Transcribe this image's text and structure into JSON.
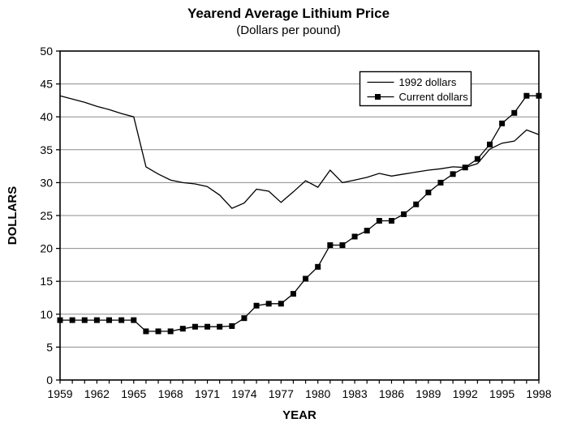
{
  "colors": {
    "background": "#ffffff",
    "foreground": "#000000",
    "gridline": "#8c8c8c",
    "series": "#000000",
    "legend_fill": "#ffffff"
  },
  "chart_data": {
    "type": "line",
    "title": "Yearend Average Lithium Price",
    "subtitle": "(Dollars per pound)",
    "xlabel": "YEAR",
    "ylabel": "DOLLARS",
    "xlim": [
      1959,
      1998
    ],
    "ylim": [
      0,
      50
    ],
    "y_ticks": [
      0,
      5,
      10,
      15,
      20,
      25,
      30,
      35,
      40,
      45,
      50
    ],
    "x_tick_labels": [
      "1959",
      "1962",
      "1965",
      "1968",
      "1971",
      "1974",
      "1977",
      "1980",
      "1983",
      "1986",
      "1989",
      "1992",
      "1995",
      "1998"
    ],
    "grid": {
      "horizontal": true,
      "vertical": false
    },
    "frame": true,
    "legend": {
      "position": "top-right-inside"
    },
    "x": [
      1959,
      1960,
      1961,
      1962,
      1963,
      1964,
      1965,
      1966,
      1967,
      1968,
      1969,
      1970,
      1971,
      1972,
      1973,
      1974,
      1975,
      1976,
      1977,
      1978,
      1979,
      1980,
      1981,
      1982,
      1983,
      1984,
      1985,
      1986,
      1987,
      1988,
      1989,
      1990,
      1991,
      1992,
      1993,
      1994,
      1995,
      1996,
      1997,
      1998
    ],
    "series": [
      {
        "name": "1992 dollars",
        "marker": "none",
        "color": "#000000",
        "values": [
          43.2,
          42.7,
          42.2,
          41.6,
          41.1,
          40.5,
          40.0,
          32.4,
          31.3,
          30.4,
          30.0,
          29.8,
          29.4,
          28.1,
          26.1,
          26.9,
          29.0,
          28.7,
          27.0,
          28.6,
          30.3,
          29.3,
          31.9,
          30.0,
          30.4,
          30.8,
          31.4,
          31.0,
          31.3,
          31.6,
          31.9,
          32.1,
          32.4,
          32.3,
          32.9,
          35.1,
          36.0,
          36.3,
          38.0,
          37.3
        ]
      },
      {
        "name": "Current dollars",
        "marker": "filled-square",
        "color": "#000000",
        "values": [
          9.1,
          9.1,
          9.1,
          9.1,
          9.1,
          9.1,
          9.1,
          7.4,
          7.4,
          7.4,
          7.8,
          8.1,
          8.1,
          8.1,
          8.2,
          9.4,
          11.3,
          11.6,
          11.6,
          13.1,
          15.4,
          17.2,
          20.5,
          20.5,
          21.8,
          22.7,
          24.2,
          24.2,
          25.2,
          26.7,
          28.5,
          30.0,
          31.3,
          32.3,
          33.6,
          35.8,
          39.0,
          40.6,
          43.2,
          43.2
        ]
      }
    ]
  }
}
